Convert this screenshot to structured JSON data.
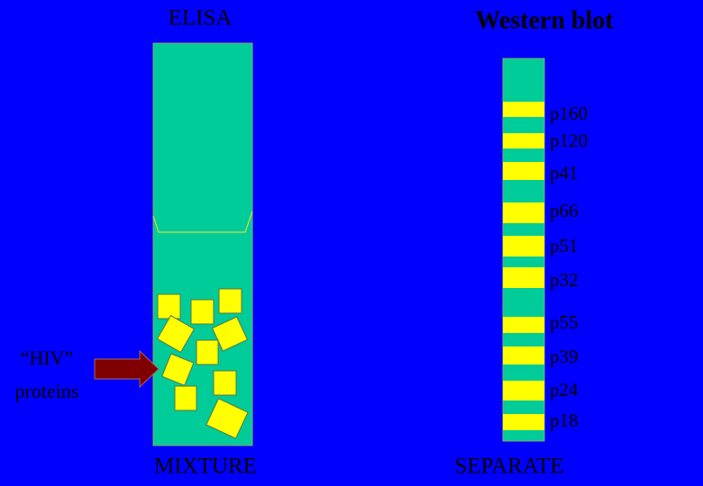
{
  "elisa": {
    "title": "ELISA",
    "footer": "MIXTURE",
    "input_label": [
      "“HIV”",
      "proteins"
    ]
  },
  "western_blot": {
    "title": "Western blot",
    "footer": "SEPARATE",
    "bands": [
      "p160",
      "p120",
      "p41",
      "p66",
      "p51",
      "p32",
      "p55",
      "p39",
      "p24",
      "p18"
    ]
  }
}
